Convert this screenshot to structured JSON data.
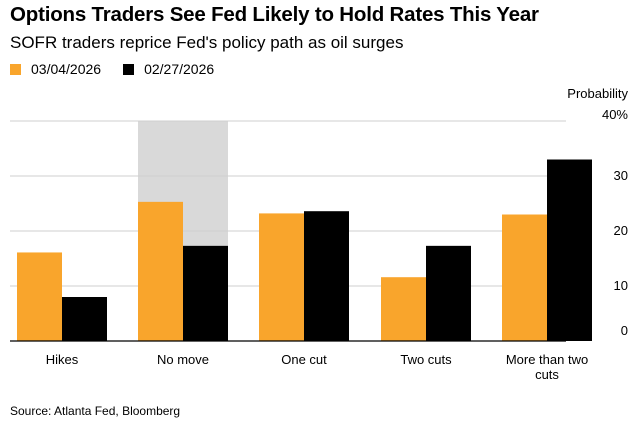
{
  "header": {
    "title": "Options Traders See Fed Likely to Hold Rates This Year",
    "subtitle": "SOFR traders reprice Fed's policy path as oil surges"
  },
  "legend": {
    "items": [
      {
        "label": "03/04/2026",
        "color": "#f9a52c"
      },
      {
        "label": "02/27/2026",
        "color": "#000000"
      }
    ]
  },
  "footer": {
    "source": "Source: Atlanta Fed, Bloomberg"
  },
  "chart_data": {
    "type": "bar",
    "title": "Options Traders See Fed Likely to Hold Rates This Year",
    "subtitle": "SOFR traders reprice Fed's policy path as oil surges",
    "categories": [
      "Hikes",
      "No move",
      "One cut",
      "Two cuts",
      "More than two cuts"
    ],
    "category_lines": [
      [
        "Hikes"
      ],
      [
        "No move"
      ],
      [
        "One cut"
      ],
      [
        "Two cuts"
      ],
      [
        "More than two",
        "cuts"
      ]
    ],
    "series": [
      {
        "name": "03/04/2026",
        "color": "#f9a52c",
        "values": [
          16.1,
          25.3,
          23.2,
          11.6,
          23.0
        ]
      },
      {
        "name": "02/27/2026",
        "color": "#000000",
        "values": [
          8.0,
          17.3,
          23.6,
          17.3,
          33.0
        ]
      }
    ],
    "ylabel": "Probability",
    "ylim": [
      0,
      40
    ],
    "yticks": [
      0,
      10,
      20,
      30,
      40
    ],
    "ytick_labels": [
      "0",
      "10",
      "20",
      "30",
      "40%"
    ],
    "highlight_category": "No move",
    "highlight_color": "#d9d9d9",
    "grid": true,
    "legend_position": "top-left",
    "y_axis_position": "right"
  }
}
